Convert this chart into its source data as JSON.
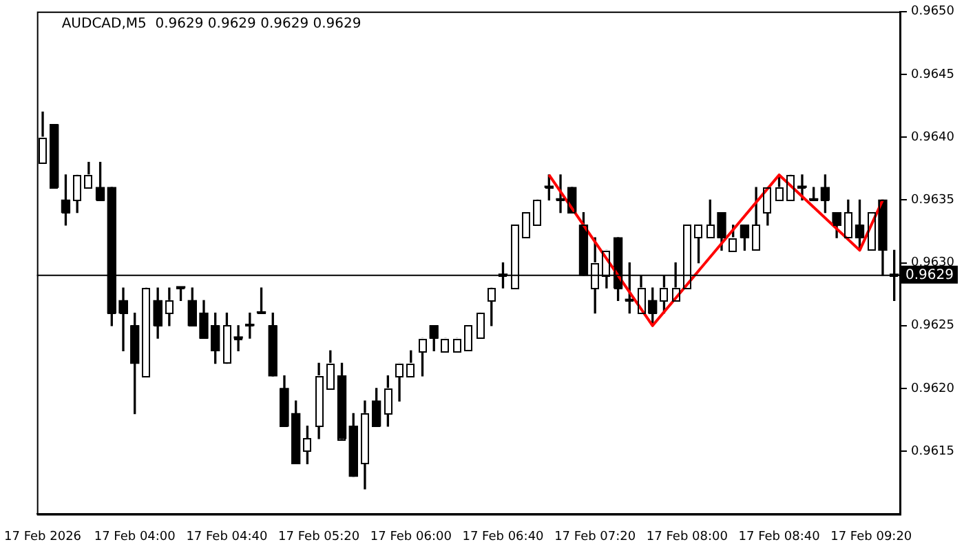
{
  "chart_data": {
    "type": "candlestick",
    "title": "AUDCAD,M5  0.9629 0.9629 0.9629 0.9629",
    "categories": [
      "17 Feb 2026",
      null,
      null,
      null,
      null,
      null,
      null,
      null,
      "17 Feb 04:00",
      null,
      null,
      null,
      null,
      null,
      null,
      null,
      "17 Feb 04:40",
      null,
      null,
      null,
      null,
      null,
      null,
      null,
      "17 Feb 05:20",
      null,
      null,
      null,
      null,
      null,
      null,
      null,
      "17 Feb 06:00",
      null,
      null,
      null,
      null,
      null,
      null,
      null,
      "17 Feb 06:40",
      null,
      null,
      null,
      null,
      null,
      null,
      null,
      "17 Feb 07:20",
      null,
      null,
      null,
      null,
      null,
      null,
      null,
      "17 Feb 08:00",
      null,
      null,
      null,
      null,
      null,
      null,
      null,
      "17 Feb 08:40",
      null,
      null,
      null,
      null,
      null,
      null,
      null,
      "17 Feb 09:20",
      null,
      null
    ],
    "ohlc": [
      [
        0.9638,
        0.9642,
        0.9638,
        0.964
      ],
      [
        0.9641,
        0.9641,
        0.9636,
        0.9636
      ],
      [
        0.9635,
        0.9637,
        0.9633,
        0.9634
      ],
      [
        0.9635,
        0.9637,
        0.9634,
        0.9637
      ],
      [
        0.9636,
        0.9638,
        0.9636,
        0.9637
      ],
      [
        0.9636,
        0.9638,
        0.9635,
        0.9635
      ],
      [
        0.9636,
        0.9636,
        0.9625,
        0.9626
      ],
      [
        0.9627,
        0.9628,
        0.9623,
        0.9626
      ],
      [
        0.9625,
        0.9626,
        0.9618,
        0.9622
      ],
      [
        0.9621,
        0.9628,
        0.9621,
        0.9628
      ],
      [
        0.9627,
        0.9628,
        0.9624,
        0.9625
      ],
      [
        0.9626,
        0.9628,
        0.9625,
        0.9627
      ],
      [
        0.9628,
        0.9628,
        0.9627,
        0.9628
      ],
      [
        0.9627,
        0.9628,
        0.9625,
        0.9625
      ],
      [
        0.9626,
        0.9627,
        0.9624,
        0.9624
      ],
      [
        0.9625,
        0.9626,
        0.9622,
        0.9623
      ],
      [
        0.9622,
        0.9626,
        0.9622,
        0.9625
      ],
      [
        0.9624,
        0.9625,
        0.9623,
        0.9624
      ],
      [
        0.9625,
        0.9626,
        0.9624,
        0.9625
      ],
      [
        0.9626,
        0.9628,
        0.9626,
        0.9626
      ],
      [
        0.9625,
        0.9626,
        0.9621,
        0.9621
      ],
      [
        0.962,
        0.9621,
        0.9617,
        0.9617
      ],
      [
        0.9618,
        0.9619,
        0.9614,
        0.9614
      ],
      [
        0.9615,
        0.9617,
        0.9614,
        0.9616
      ],
      [
        0.9617,
        0.9622,
        0.9616,
        0.9621
      ],
      [
        0.962,
        0.9623,
        0.962,
        0.9622
      ],
      [
        0.9621,
        0.9622,
        0.9616,
        0.9616
      ],
      [
        0.9617,
        0.9618,
        0.9613,
        0.9613
      ],
      [
        0.9614,
        0.9619,
        0.9612,
        0.9618
      ],
      [
        0.9619,
        0.962,
        0.9617,
        0.9617
      ],
      [
        0.9618,
        0.9621,
        0.9617,
        0.962
      ],
      [
        0.9621,
        0.9622,
        0.9619,
        0.9622
      ],
      [
        0.9621,
        0.9623,
        0.9621,
        0.9622
      ],
      [
        0.9623,
        0.9624,
        0.9621,
        0.9624
      ],
      [
        0.9625,
        0.9625,
        0.9623,
        0.9624
      ],
      [
        0.9623,
        0.9624,
        0.9623,
        0.9624
      ],
      [
        0.9623,
        0.9624,
        0.9623,
        0.9624
      ],
      [
        0.9623,
        0.9625,
        0.9623,
        0.9625
      ],
      [
        0.9624,
        0.9626,
        0.9624,
        0.9626
      ],
      [
        0.9627,
        0.9628,
        0.9625,
        0.9628
      ],
      [
        0.9629,
        0.963,
        0.9628,
        0.9629
      ],
      [
        0.9628,
        0.9633,
        0.9628,
        0.9633
      ],
      [
        0.9632,
        0.9634,
        0.9632,
        0.9634
      ],
      [
        0.9633,
        0.9635,
        0.9633,
        0.9635
      ],
      [
        0.9636,
        0.9637,
        0.9635,
        0.9636
      ],
      [
        0.9635,
        0.9637,
        0.9634,
        0.9635
      ],
      [
        0.9636,
        0.9636,
        0.9634,
        0.9634
      ],
      [
        0.9633,
        0.9634,
        0.9629,
        0.9629
      ],
      [
        0.9628,
        0.9632,
        0.9626,
        0.963
      ],
      [
        0.9629,
        0.9631,
        0.9628,
        0.9631
      ],
      [
        0.9632,
        0.9632,
        0.9627,
        0.9628
      ],
      [
        0.9627,
        0.963,
        0.9626,
        0.9627
      ],
      [
        0.9626,
        0.9629,
        0.9626,
        0.9628
      ],
      [
        0.9627,
        0.9628,
        0.9625,
        0.9626
      ],
      [
        0.9627,
        0.9629,
        0.9626,
        0.9628
      ],
      [
        0.9627,
        0.963,
        0.9627,
        0.9628
      ],
      [
        0.9628,
        0.9633,
        0.9628,
        0.9633
      ],
      [
        0.9632,
        0.9633,
        0.963,
        0.9633
      ],
      [
        0.9632,
        0.9635,
        0.9632,
        0.9633
      ],
      [
        0.9634,
        0.9634,
        0.9631,
        0.9632
      ],
      [
        0.9631,
        0.9633,
        0.9631,
        0.9632
      ],
      [
        0.9633,
        0.9633,
        0.9631,
        0.9632
      ],
      [
        0.9631,
        0.9636,
        0.9631,
        0.9633
      ],
      [
        0.9634,
        0.9636,
        0.9633,
        0.9636
      ],
      [
        0.9635,
        0.9637,
        0.9635,
        0.9636
      ],
      [
        0.9635,
        0.9637,
        0.9635,
        0.9637
      ],
      [
        0.9636,
        0.9637,
        0.9635,
        0.9636
      ],
      [
        0.9635,
        0.9636,
        0.9635,
        0.9635
      ],
      [
        0.9636,
        0.9637,
        0.9634,
        0.9635
      ],
      [
        0.9634,
        0.9634,
        0.9632,
        0.9633
      ],
      [
        0.9632,
        0.9635,
        0.9632,
        0.9634
      ],
      [
        0.9633,
        0.9635,
        0.9631,
        0.9632
      ],
      [
        0.9631,
        0.9634,
        0.9631,
        0.9634
      ],
      [
        0.9635,
        0.9635,
        0.9629,
        0.9631
      ],
      [
        0.9629,
        0.9631,
        0.9627,
        0.9629
      ]
    ],
    "colors": [
      "#ffffff",
      "#000000",
      "#000000",
      "#ffffff",
      "#ffffff",
      "#000000",
      "#000000",
      "#000000",
      "#000000",
      "#ffffff",
      "#000000",
      "#ffffff",
      "#000000",
      "#000000",
      "#000000",
      "#000000",
      "#ffffff",
      "#000000",
      "#000000",
      "#000000",
      "#000000",
      "#000000",
      "#000000",
      "#ffffff",
      "#ffffff",
      "#ffffff",
      "#000000",
      "#000000",
      "#ffffff",
      "#000000",
      "#ffffff",
      "#ffffff",
      "#ffffff",
      "#ffffff",
      "#000000",
      "#ffffff",
      "#ffffff",
      "#ffffff",
      "#ffffff",
      "#ffffff",
      "#000000",
      "#ffffff",
      "#ffffff",
      "#ffffff",
      "#000000",
      "#000000",
      "#000000",
      "#000000",
      "#ffffff",
      "#ffffff",
      "#000000",
      "#000000",
      "#ffffff",
      "#000000",
      "#ffffff",
      "#ffffff",
      "#ffffff",
      "#ffffff",
      "#ffffff",
      "#000000",
      "#ffffff",
      "#000000",
      "#ffffff",
      "#ffffff",
      "#ffffff",
      "#ffffff",
      "#000000",
      "#000000",
      "#000000",
      "#000000",
      "#ffffff",
      "#000000",
      "#ffffff",
      "#000000",
      "#000000"
    ],
    "series": [
      {
        "type": "line",
        "color": "#ff0000",
        "values": [
          null,
          null,
          null,
          null,
          null,
          null,
          null,
          null,
          null,
          null,
          null,
          null,
          null,
          null,
          null,
          null,
          null,
          null,
          null,
          null,
          null,
          null,
          null,
          null,
          null,
          null,
          null,
          null,
          null,
          null,
          null,
          null,
          null,
          null,
          null,
          null,
          null,
          null,
          null,
          null,
          null,
          null,
          null,
          null,
          0.9637,
          null,
          null,
          null,
          null,
          null,
          null,
          null,
          null,
          0.9625,
          null,
          null,
          null,
          null,
          null,
          null,
          null,
          null,
          null,
          null,
          0.9637,
          null,
          null,
          null,
          null,
          null,
          null,
          0.9631,
          null,
          0.9635,
          null
        ]
      }
    ],
    "ylim": [
      0.961,
      0.965
    ],
    "yticks": [
      0.9615,
      {
        "value": 0.962,
        "label": "0.9620"
      },
      0.9625,
      {
        "value": 0.963,
        "label": "0.9630"
      },
      0.9635,
      {
        "value": 0.964,
        "label": "0.9640"
      },
      0.9645,
      {
        "value": 0.965,
        "label": "0.9650"
      }
    ],
    "ref_lines": [
      {
        "axis": "y",
        "value": 0.9629,
        "label": "0.9629",
        "color": "#000000"
      }
    ]
  }
}
